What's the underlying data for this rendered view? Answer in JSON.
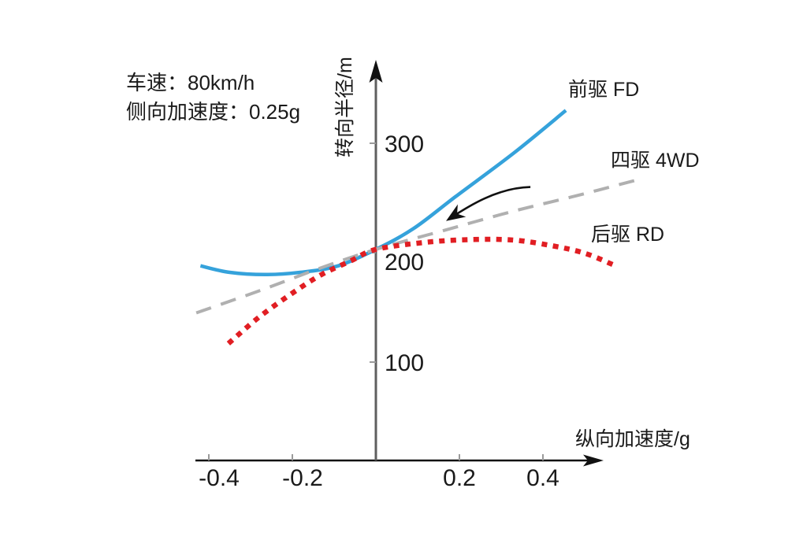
{
  "chart_data": {
    "type": "line",
    "title": "",
    "xlabel": "纵向加速度/g",
    "ylabel": "转向半径/m",
    "conditions": [
      "车速：80km/h",
      "侧向加速度：0.25g"
    ],
    "x_ticks": [
      -0.4,
      -0.2,
      0.2,
      0.4
    ],
    "y_ticks": [
      100,
      200,
      300
    ],
    "xlim": [
      -0.45,
      0.65
    ],
    "ylim": [
      60,
      360
    ],
    "grid": false,
    "legend_position": "at-line-ends",
    "series": [
      {
        "name": "前驱 FD",
        "color": "#35a2db",
        "style": "solid",
        "points": [
          [
            -0.42,
            188
          ],
          [
            -0.35,
            182
          ],
          [
            -0.26,
            180
          ],
          [
            -0.17,
            182.5
          ],
          [
            -0.09,
            188
          ],
          [
            0,
            203
          ],
          [
            0.09,
            222
          ],
          [
            0.19,
            251
          ],
          [
            0.33,
            291
          ],
          [
            0.455,
            330
          ]
        ]
      },
      {
        "name": "四驱 4WD",
        "color": "#b0b0b0",
        "style": "dashed",
        "points": [
          [
            -0.43,
            145
          ],
          [
            -0.28,
            165
          ],
          [
            -0.14,
            185
          ],
          [
            0,
            203
          ],
          [
            0.16,
            220
          ],
          [
            0.33,
            238
          ],
          [
            0.48,
            252
          ],
          [
            0.62,
            266
          ]
        ]
      },
      {
        "name": "后驱 RD",
        "color": "#e11e23",
        "style": "dotted",
        "points": [
          [
            -0.353,
            117
          ],
          [
            -0.28,
            141
          ],
          [
            -0.2,
            163
          ],
          [
            -0.13,
            180
          ],
          [
            -0.06,
            192.5
          ],
          [
            0,
            203
          ],
          [
            0.12,
            209.5
          ],
          [
            0.23,
            212
          ],
          [
            0.33,
            211.5
          ],
          [
            0.42,
            206.5
          ],
          [
            0.5,
            199.5
          ],
          [
            0.568,
            189
          ]
        ]
      }
    ],
    "annotations": [
      {
        "type": "curved-arrow",
        "color": "#111111",
        "from": [
          0.37,
          260
        ],
        "to": [
          0.168,
          229
        ]
      }
    ],
    "axis_colors": {
      "x_axis": "#111111",
      "y_axis": "#5f5f5f",
      "tick": "#9a9a9a"
    }
  }
}
